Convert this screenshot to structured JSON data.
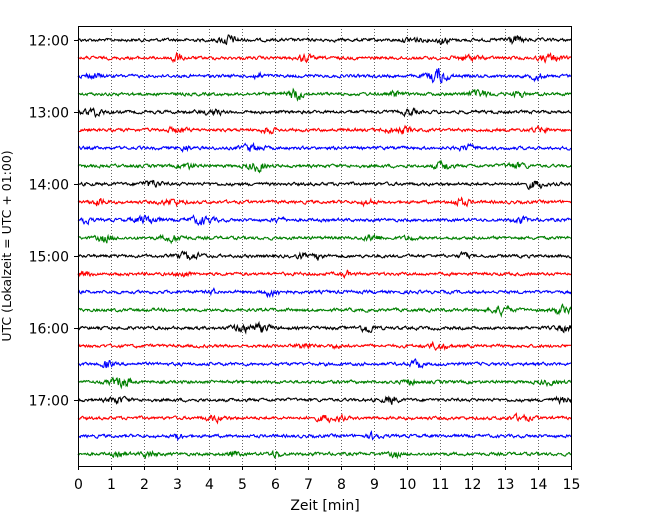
{
  "chart_data": {
    "type": "line",
    "title": "",
    "xlabel": "Zeit  [min]",
    "ylabel": "UTC (Lokalzeit = UTC + 01:00)",
    "xlim": [
      0,
      15
    ],
    "x_ticks": [
      0,
      1,
      2,
      3,
      4,
      5,
      6,
      7,
      8,
      9,
      10,
      11,
      12,
      13,
      14,
      15
    ],
    "x_tick_labels": [
      "0",
      "1",
      "2",
      "3",
      "4",
      "5",
      "6",
      "7",
      "8",
      "9",
      "10",
      "11",
      "12",
      "13",
      "14",
      "15"
    ],
    "y_tick_labels": [
      "12:00",
      "13:00",
      "14:00",
      "15:00",
      "16:00",
      "17:00"
    ],
    "grid": "vertical dotted",
    "trace_colors": [
      "#000000",
      "#ff0000",
      "#0000ff",
      "#008000"
    ],
    "series": [
      {
        "start_utc": "12:00",
        "color": "#000000"
      },
      {
        "start_utc": "12:15",
        "color": "#ff0000"
      },
      {
        "start_utc": "12:30",
        "color": "#0000ff"
      },
      {
        "start_utc": "12:45",
        "color": "#008000"
      },
      {
        "start_utc": "13:00",
        "color": "#000000"
      },
      {
        "start_utc": "13:15",
        "color": "#ff0000"
      },
      {
        "start_utc": "13:30",
        "color": "#0000ff"
      },
      {
        "start_utc": "13:45",
        "color": "#008000"
      },
      {
        "start_utc": "14:00",
        "color": "#000000"
      },
      {
        "start_utc": "14:15",
        "color": "#ff0000"
      },
      {
        "start_utc": "14:30",
        "color": "#0000ff"
      },
      {
        "start_utc": "14:45",
        "color": "#008000"
      },
      {
        "start_utc": "15:00",
        "color": "#000000"
      },
      {
        "start_utc": "15:15",
        "color": "#ff0000"
      },
      {
        "start_utc": "15:30",
        "color": "#0000ff"
      },
      {
        "start_utc": "15:45",
        "color": "#008000"
      },
      {
        "start_utc": "16:00",
        "color": "#000000"
      },
      {
        "start_utc": "16:15",
        "color": "#ff0000"
      },
      {
        "start_utc": "16:30",
        "color": "#0000ff"
      },
      {
        "start_utc": "16:45",
        "color": "#008000"
      },
      {
        "start_utc": "17:00",
        "color": "#000000"
      },
      {
        "start_utc": "17:15",
        "color": "#ff0000"
      },
      {
        "start_utc": "17:30",
        "color": "#0000ff"
      },
      {
        "start_utc": "17:45",
        "color": "#008000"
      }
    ]
  }
}
